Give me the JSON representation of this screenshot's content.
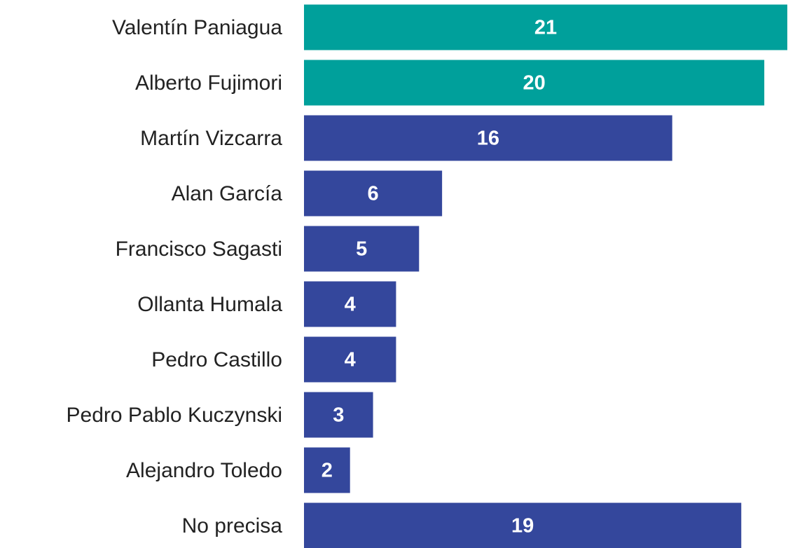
{
  "chart_data": {
    "type": "bar",
    "categories": [
      "Valentín Paniagua",
      "Alberto Fujimori",
      "Martín Vizcarra",
      "Alan García",
      "Francisco Sagasti",
      "Ollanta Humala",
      "Pedro Castillo",
      "Pedro Pablo Kuczynski",
      "Alejandro Toledo",
      "No precisa"
    ],
    "values": [
      21,
      20,
      16,
      6,
      5,
      4,
      4,
      3,
      2,
      19
    ],
    "colors": [
      "#00a09b",
      "#00a09b",
      "#34479c",
      "#34479c",
      "#34479c",
      "#34479c",
      "#34479c",
      "#34479c",
      "#34479c",
      "#34479c"
    ]
  }
}
